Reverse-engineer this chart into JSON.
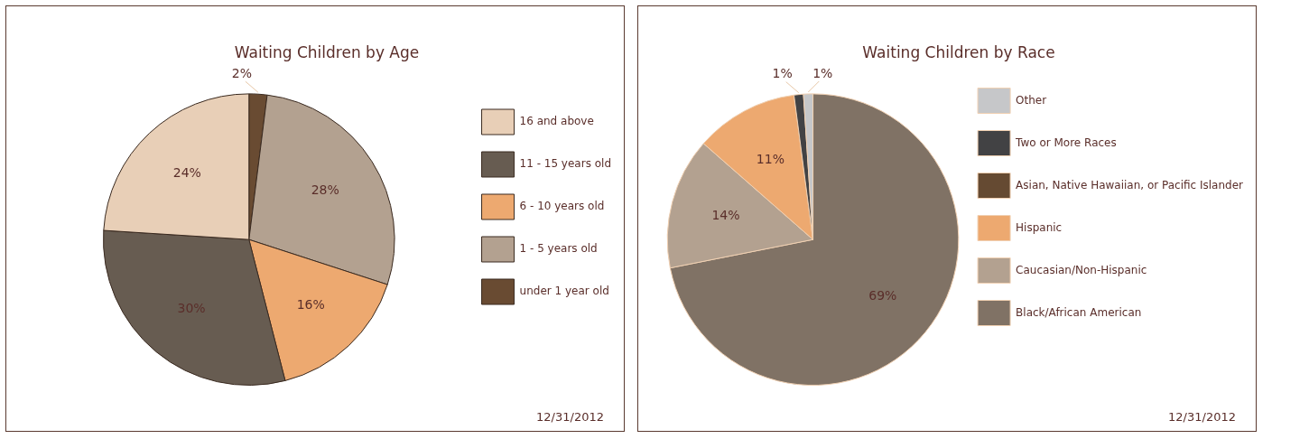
{
  "chart_data": [
    {
      "type": "pie",
      "title": "Waiting Children by Age",
      "categories": [
        "under 1 year old",
        "1 - 5 years old",
        "6 - 10 years old",
        "11 - 15 years old",
        "16 and above"
      ],
      "values": [
        2,
        28,
        16,
        30,
        24
      ],
      "colors": [
        "#694b32",
        "#b3a190",
        "#eda970",
        "#675c51",
        "#e8cfb7"
      ],
      "value_labels": [
        "2%",
        "28%",
        "16%",
        "30%",
        "24%"
      ],
      "legend": "right",
      "annotations": [
        "12/31/2012"
      ]
    },
    {
      "type": "pie",
      "title": "Waiting Children by Race",
      "categories": [
        "Black/African American",
        "Caucasian/Non-Hispanic",
        "Hispanic",
        "Asian, Native Hawaiian, or Pacific Islander",
        "Two or More Races",
        "Other"
      ],
      "values": [
        69,
        14,
        11,
        0,
        1,
        1
      ],
      "colors": [
        "#807265",
        "#b3a190",
        "#eda970",
        "#654a32",
        "#424244",
        "#c6c7c9"
      ],
      "value_labels": [
        "69%",
        "14%",
        "11%",
        null,
        "1%",
        "1%"
      ],
      "legend": "right",
      "annotations": [
        "12/31/2012"
      ]
    }
  ]
}
